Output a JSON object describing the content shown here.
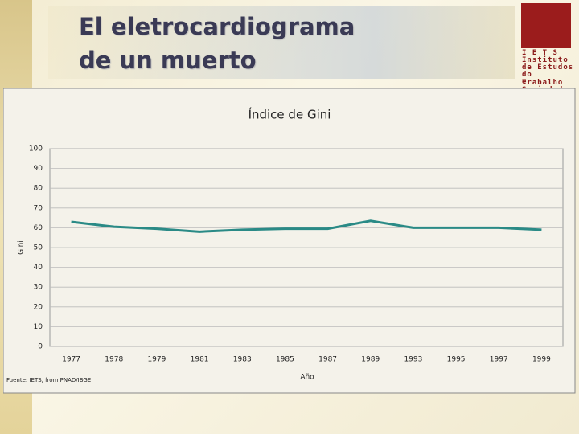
{
  "header": {
    "title_lines": [
      "El eletrocardiograma",
      "de un muerto"
    ]
  },
  "logo": {
    "lines": [
      "I E T S",
      "Instituto",
      "de Estudos",
      "do Trabalho",
      "e Sociedade"
    ]
  },
  "chart_data": {
    "type": "line",
    "title": "Índice de Gini",
    "y_label": "Gini",
    "x_label": "Año",
    "source": "Fuente: IETS, from PNAD/IBGE",
    "categories": [
      "1977",
      "1978",
      "1979",
      "1981",
      "1983",
      "1985",
      "1987",
      "1989",
      "1993",
      "1995",
      "1997",
      "1999"
    ],
    "values": [
      63,
      60.5,
      59.5,
      58,
      59,
      59.5,
      59.5,
      63.5,
      60,
      60,
      60,
      59
    ],
    "color": "#2a8a86",
    "ylim": [
      0,
      100
    ],
    "yticks": [
      0,
      10,
      20,
      30,
      40,
      50,
      60,
      70,
      80,
      90,
      100
    ],
    "grid": true
  }
}
